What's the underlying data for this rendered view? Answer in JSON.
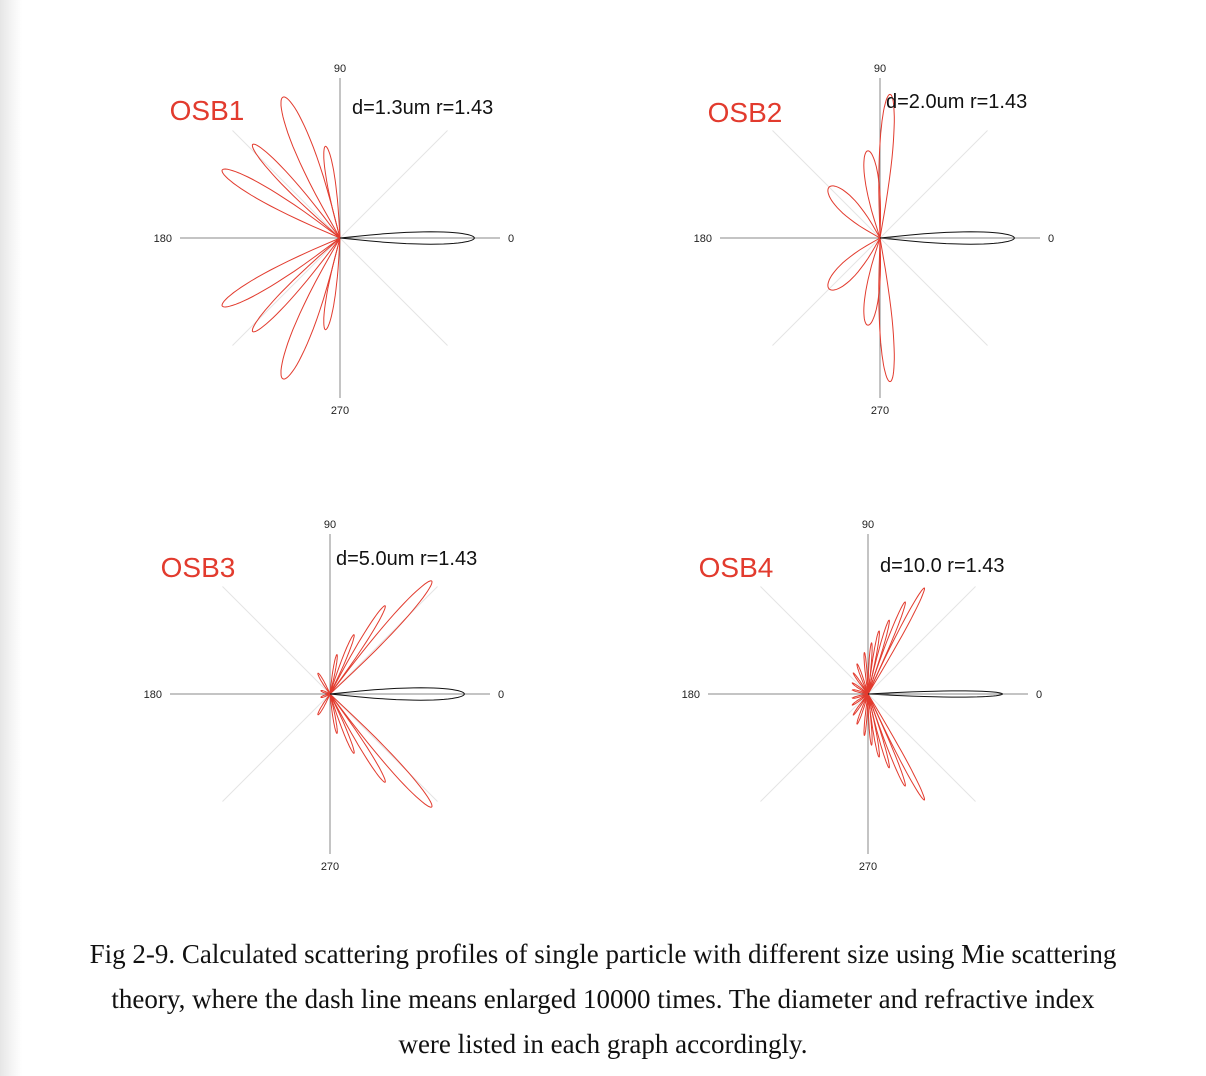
{
  "colors": {
    "main": "#111111",
    "enlarged": "#e23b2e",
    "grid": "#e4e4e4",
    "axis": "#888888",
    "label": "#e23b2e"
  },
  "chart_data": [
    {
      "type": "polar",
      "label": "OSB1",
      "params": "d=1.3um r=1.43",
      "angle_labels": [
        "90",
        "180",
        "270",
        "0"
      ],
      "main_lobe": {
        "angle_deg": 0,
        "extent": 1.0
      },
      "enlarged_lobes": [
        {
          "angle_deg": 112,
          "extent": 0.95,
          "width": 8
        },
        {
          "angle_deg": 99,
          "extent": 0.58,
          "width": 6
        },
        {
          "angle_deg": 133,
          "extent": 0.8,
          "width": 6
        },
        {
          "angle_deg": 150,
          "extent": 0.85,
          "width": 7
        },
        {
          "angle_deg": 210,
          "extent": 0.85,
          "width": 7
        },
        {
          "angle_deg": 227,
          "extent": 0.8,
          "width": 6
        },
        {
          "angle_deg": 248,
          "extent": 0.95,
          "width": 8
        },
        {
          "angle_deg": 261,
          "extent": 0.58,
          "width": 6
        }
      ]
    },
    {
      "type": "polar",
      "label": "OSB2",
      "params": "d=2.0um r=1.43",
      "angle_labels": [
        "90",
        "180",
        "270",
        "0"
      ],
      "main_lobe": {
        "angle_deg": 0,
        "extent": 1.0
      },
      "enlarged_lobes": [
        {
          "angle_deg": 86,
          "extent": 0.9,
          "width": 6
        },
        {
          "angle_deg": 98,
          "extent": 0.55,
          "width": 10
        },
        {
          "angle_deg": 135,
          "extent": 0.45,
          "width": 16
        },
        {
          "angle_deg": 225,
          "extent": 0.45,
          "width": 16
        },
        {
          "angle_deg": 262,
          "extent": 0.55,
          "width": 10
        },
        {
          "angle_deg": 274,
          "extent": 0.9,
          "width": 6
        }
      ]
    },
    {
      "type": "polar",
      "label": "OSB3",
      "params": "d=5.0um r=1.43",
      "angle_labels": [
        "90",
        "180",
        "270",
        "0"
      ],
      "main_lobe": {
        "angle_deg": 0,
        "extent": 1.0
      },
      "enlarged_lobes": [
        {
          "angle_deg": 48,
          "extent": 0.95,
          "width": 5
        },
        {
          "angle_deg": 58,
          "extent": 0.65,
          "width": 4
        },
        {
          "angle_deg": 68,
          "extent": 0.4,
          "width": 4
        },
        {
          "angle_deg": 80,
          "extent": 0.25,
          "width": 4
        },
        {
          "angle_deg": 120,
          "extent": 0.15,
          "width": 6
        },
        {
          "angle_deg": 160,
          "extent": 0.06,
          "width": 10
        },
        {
          "angle_deg": 200,
          "extent": 0.06,
          "width": 10
        },
        {
          "angle_deg": 240,
          "extent": 0.15,
          "width": 6
        },
        {
          "angle_deg": 280,
          "extent": 0.25,
          "width": 4
        },
        {
          "angle_deg": 292,
          "extent": 0.4,
          "width": 4
        },
        {
          "angle_deg": 302,
          "extent": 0.65,
          "width": 4
        },
        {
          "angle_deg": 312,
          "extent": 0.95,
          "width": 5
        }
      ]
    },
    {
      "type": "polar",
      "label": "OSB4",
      "params": "d=10.0 r=1.43",
      "angle_labels": [
        "90",
        "180",
        "270",
        "0"
      ],
      "main_lobe": {
        "angle_deg": 0,
        "extent": 1.0
      },
      "enlarged_lobes": [
        {
          "angle_deg": 62,
          "extent": 0.75,
          "width": 3
        },
        {
          "angle_deg": 68,
          "extent": 0.62,
          "width": 3
        },
        {
          "angle_deg": 74,
          "extent": 0.48,
          "width": 3
        },
        {
          "angle_deg": 80,
          "extent": 0.4,
          "width": 3
        },
        {
          "angle_deg": 86,
          "extent": 0.32,
          "width": 3
        },
        {
          "angle_deg": 95,
          "extent": 0.26,
          "width": 3
        },
        {
          "angle_deg": 110,
          "extent": 0.2,
          "width": 4
        },
        {
          "angle_deg": 125,
          "extent": 0.16,
          "width": 4
        },
        {
          "angle_deg": 145,
          "extent": 0.12,
          "width": 5
        },
        {
          "angle_deg": 165,
          "extent": 0.1,
          "width": 6
        },
        {
          "angle_deg": 195,
          "extent": 0.1,
          "width": 6
        },
        {
          "angle_deg": 215,
          "extent": 0.12,
          "width": 5
        },
        {
          "angle_deg": 235,
          "extent": 0.16,
          "width": 4
        },
        {
          "angle_deg": 250,
          "extent": 0.2,
          "width": 4
        },
        {
          "angle_deg": 265,
          "extent": 0.26,
          "width": 3
        },
        {
          "angle_deg": 274,
          "extent": 0.32,
          "width": 3
        },
        {
          "angle_deg": 280,
          "extent": 0.4,
          "width": 3
        },
        {
          "angle_deg": 286,
          "extent": 0.48,
          "width": 3
        },
        {
          "angle_deg": 292,
          "extent": 0.62,
          "width": 3
        },
        {
          "angle_deg": 298,
          "extent": 0.75,
          "width": 3
        }
      ]
    }
  ],
  "caption": {
    "line1": "Fig 2-9. Calculated scattering profiles of single particle with different size using Mie scattering",
    "line2": "theory, where the dash line means enlarged 10000 times. The diameter and refractive index",
    "line3": "were listed in each graph accordingly."
  }
}
